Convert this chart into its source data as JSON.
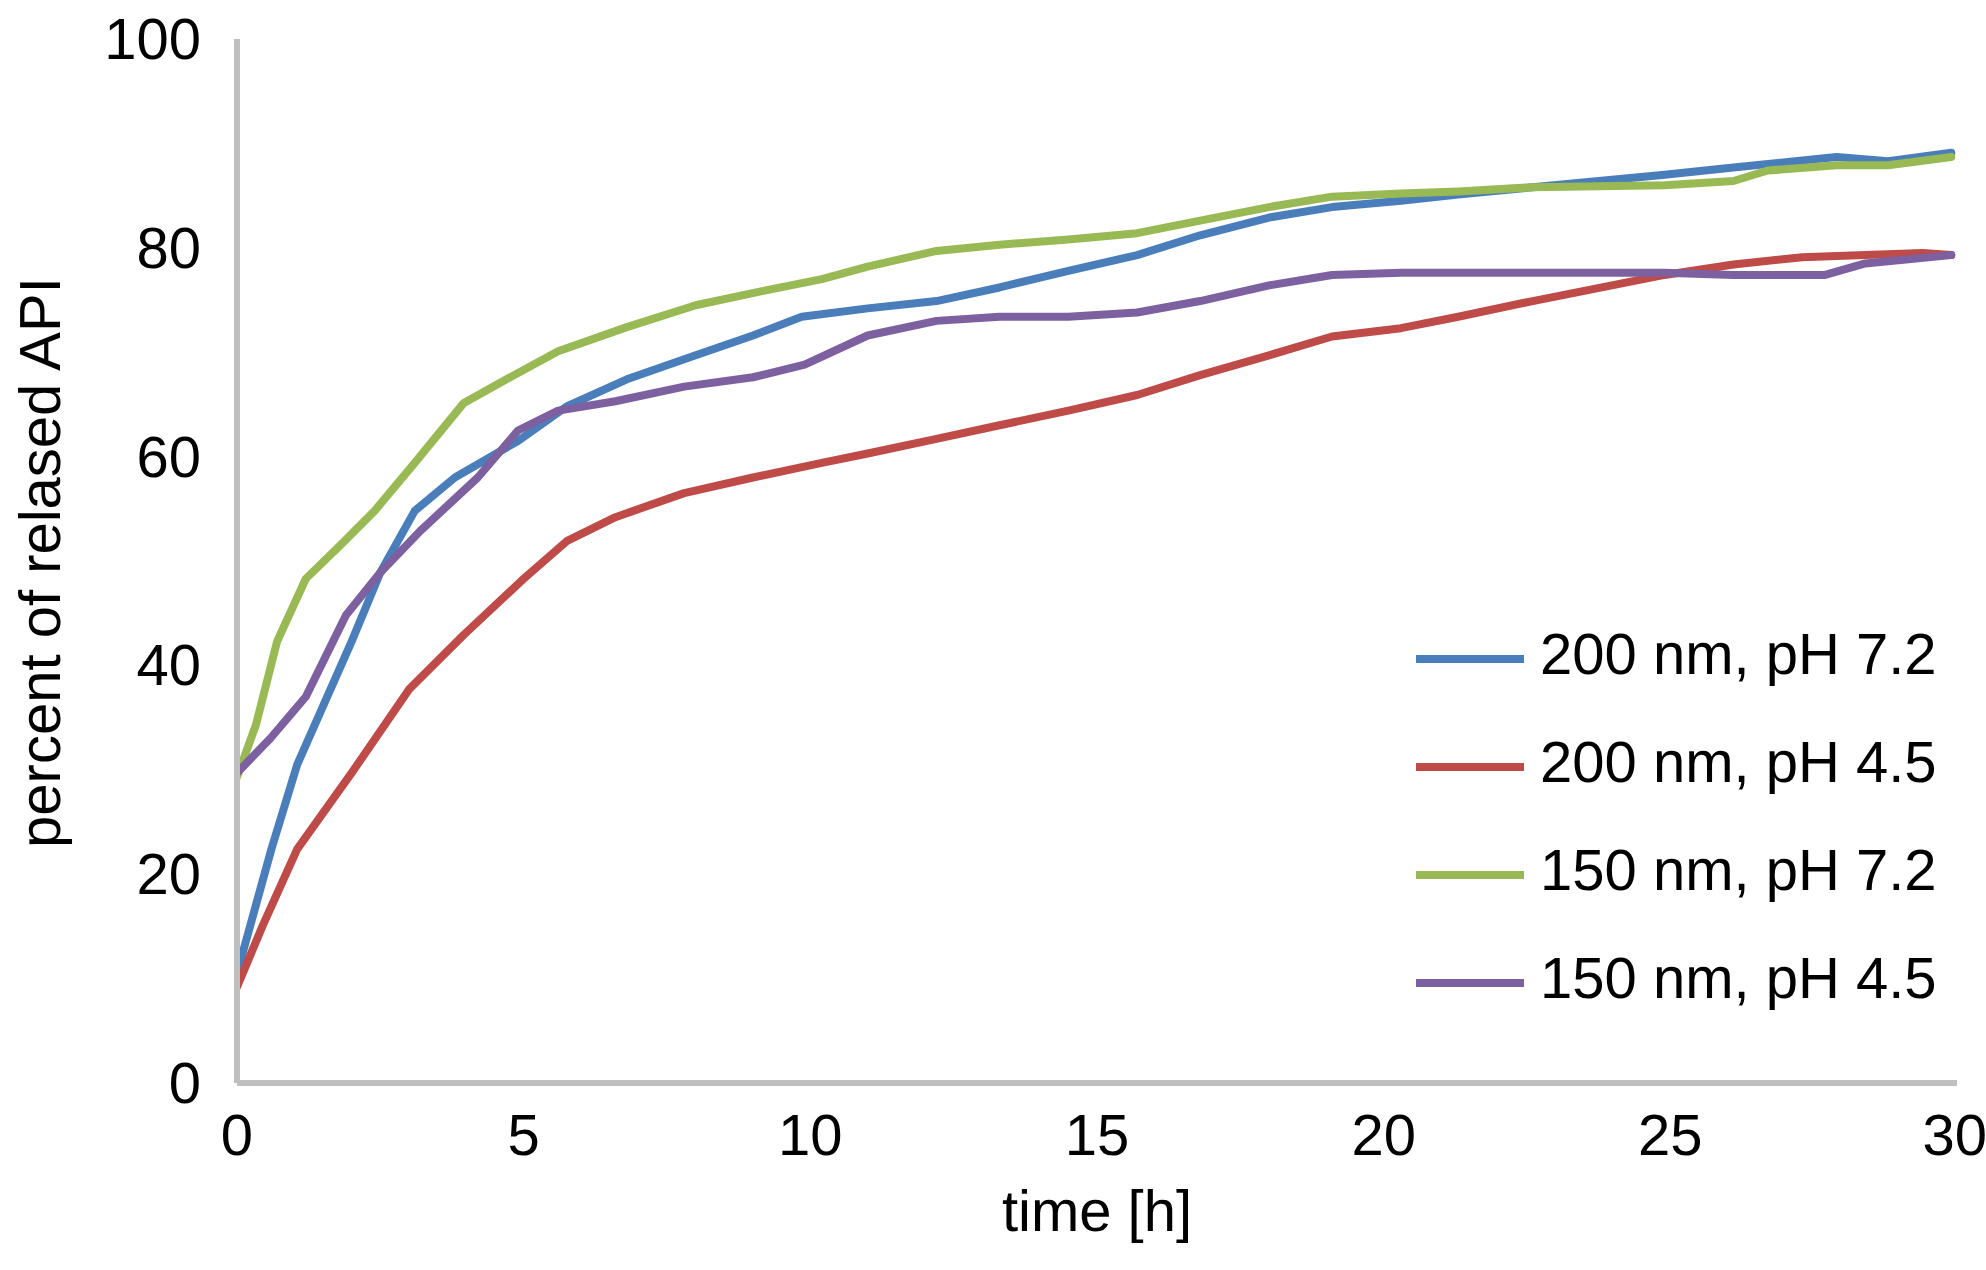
{
  "chart_data": {
    "type": "line",
    "xlabel": "time [h]",
    "ylabel": "percent of relased API",
    "xlim": [
      0,
      30
    ],
    "ylim": [
      0,
      100
    ],
    "xticks": [
      0,
      5,
      10,
      15,
      20,
      25,
      30
    ],
    "yticks": [
      0,
      20,
      40,
      60,
      80,
      100
    ],
    "legend": "right",
    "line_style": "solid",
    "series": [
      {
        "name": "200 nm, pH 7.2",
        "color": "#4a7ebb",
        "x": [
          0,
          0.6,
          1.05,
          2.0,
          2.5,
          3.1,
          3.8,
          4.9,
          5.75,
          6.8,
          8.0,
          9.0,
          9.85,
          11.0,
          12.2,
          13.3,
          14.5,
          15.7,
          16.8,
          18.0,
          19.1,
          20.3,
          21.3,
          22.6,
          24.9,
          26.1,
          27.9,
          28.8,
          29.9
        ],
        "values": [
          10.5,
          22.4,
          30.5,
          42.3,
          48.9,
          54.8,
          58,
          61.5,
          64.8,
          67.4,
          69.7,
          71.6,
          73.4,
          74.2,
          74.9,
          76.2,
          77.8,
          79.3,
          81.2,
          82.9,
          83.9,
          84.5,
          85.1,
          85.8,
          87,
          87.7,
          88.7,
          88.3,
          89.1
        ]
      },
      {
        "name": "200 nm, pH 4.5",
        "color": "#be4b48",
        "x": [
          0,
          0.45,
          1.05,
          2.0,
          3.0,
          3.95,
          5.0,
          5.75,
          6.6,
          7.8,
          9.0,
          10.2,
          11.0,
          12.2,
          13.3,
          14.5,
          15.7,
          16.8,
          18.0,
          19.1,
          20.3,
          21.3,
          22.6,
          24.9,
          26.1,
          27.3,
          28.4,
          29.4,
          29.9
        ],
        "values": [
          9.2,
          15.1,
          22.4,
          29.7,
          37.7,
          42.9,
          48.3,
          51.9,
          54.2,
          56.5,
          58,
          59.4,
          60.3,
          61.7,
          63,
          64.4,
          65.9,
          67.8,
          69.7,
          71.5,
          72.3,
          73.4,
          74.9,
          77.4,
          78.4,
          79.1,
          79.3,
          79.5,
          79.3
        ]
      },
      {
        "name": "150 nm, pH 7.2",
        "color": "#98b954",
        "x": [
          0,
          0.33,
          0.7,
          1.2,
          1.8,
          2.4,
          3.1,
          3.95,
          4.7,
          5.6,
          6.8,
          8.0,
          9.2,
          10.2,
          11.0,
          12.2,
          13.3,
          14.5,
          15.7,
          16.8,
          18.0,
          19.1,
          20.3,
          21.3,
          22.6,
          24.9,
          26.1,
          26.7,
          27.9,
          28.8,
          29.9
        ],
        "values": [
          29.3,
          34.3,
          42.3,
          48.3,
          51.5,
          54.8,
          59.4,
          65.1,
          67.4,
          70.1,
          72.4,
          74.5,
          75.9,
          77,
          78.2,
          79.7,
          80.3,
          80.8,
          81.4,
          82.6,
          83.9,
          84.9,
          85.2,
          85.4,
          85.8,
          86,
          86.4,
          87.4,
          87.9,
          87.9,
          88.7
        ]
      },
      {
        "name": "150 nm, pH 4.5",
        "color": "#7d60a0",
        "x": [
          0,
          0.58,
          1.2,
          1.9,
          2.5,
          3.2,
          4.2,
          4.9,
          5.6,
          6.6,
          7.8,
          9.0,
          9.9,
          11.0,
          12.2,
          13.3,
          14.5,
          15.7,
          16.8,
          18.0,
          19.1,
          20.3,
          22.6,
          24.9,
          26.1,
          27.7,
          28.4,
          29.9
        ],
        "values": [
          29.7,
          33,
          37,
          44.8,
          48.9,
          52.9,
          58,
          62.5,
          64.4,
          65.3,
          66.7,
          67.6,
          68.8,
          71.6,
          73,
          73.4,
          73.4,
          73.8,
          74.9,
          76.4,
          77.4,
          77.6,
          77.6,
          77.6,
          77.4,
          77.4,
          78.5,
          79.3
        ]
      }
    ]
  }
}
